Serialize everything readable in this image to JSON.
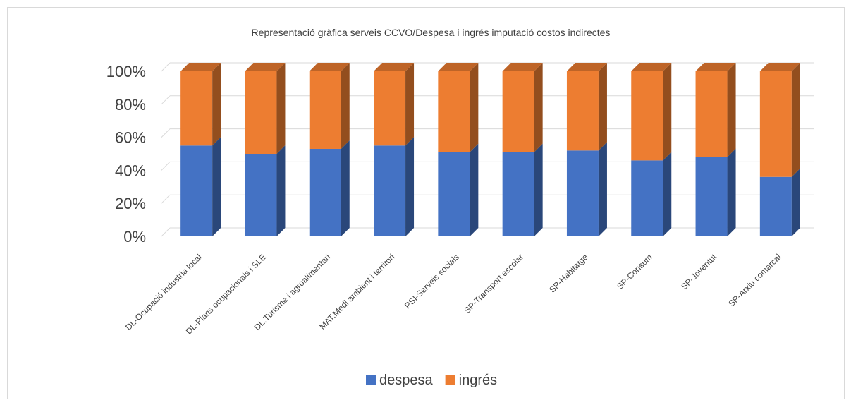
{
  "chart_data": {
    "type": "bar",
    "stacked": true,
    "percent_stacked": true,
    "three_d": true,
    "title": "Representació gràfica serveis CCVO/Despesa i ingrés imputació costos indirectes",
    "xlabel": "",
    "ylabel": "",
    "ylim": [
      0,
      100
    ],
    "yticks": [
      "0%",
      "20%",
      "40%",
      "60%",
      "80%",
      "100%"
    ],
    "grid": true,
    "legend": "bottom",
    "categories": [
      "DL-Ocupació industria local",
      "DL-Plans ocupacionals i SLE",
      "DL.Turisme i agroalimentari",
      "MAT.Medi ambient i territori",
      "PSI-Serveis socials",
      "SP-Transport escolar",
      "SP-Habitatge",
      "SP-Consum",
      "SP-Joventut",
      "SP-Arxiu comarcal"
    ],
    "series": [
      {
        "name": "despesa",
        "color": "#4472C4",
        "values": [
          55,
          50,
          53,
          55,
          51,
          51,
          52,
          46,
          48,
          36
        ]
      },
      {
        "name": "ingrés",
        "color": "#ED7D31",
        "values": [
          45,
          50,
          47,
          45,
          49,
          49,
          48,
          54,
          52,
          64
        ]
      }
    ]
  }
}
